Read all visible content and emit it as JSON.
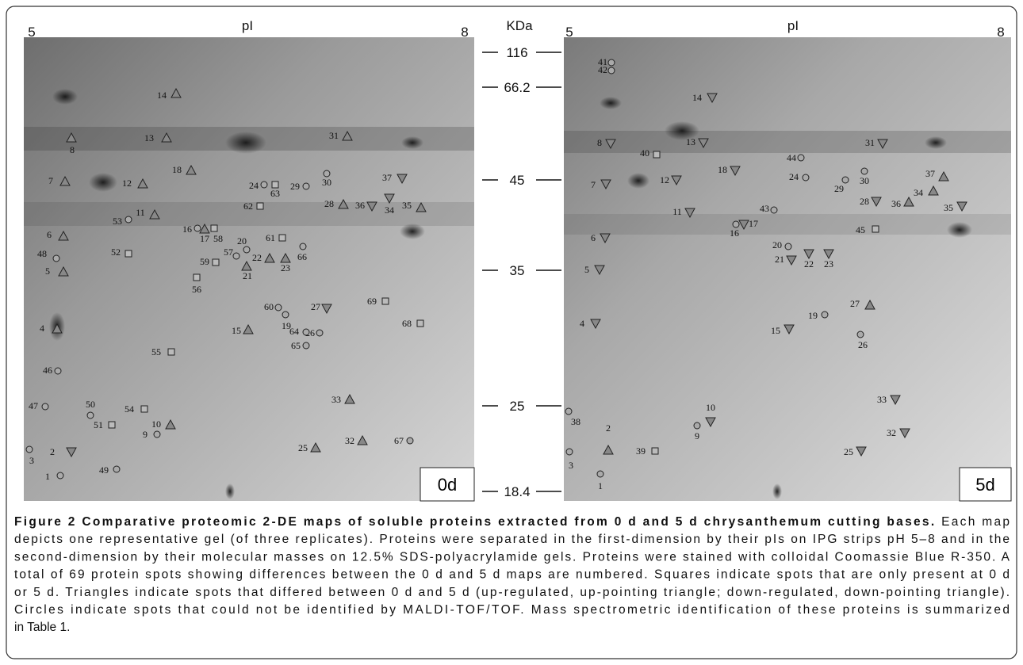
{
  "figure": {
    "panels": [
      {
        "pi_axis": {
          "label": "pI",
          "start": "5",
          "end": "8"
        },
        "badge": "0d",
        "spots": [
          {
            "label": "1",
            "shape": "circle"
          },
          {
            "label": "2",
            "shape": "down"
          },
          {
            "label": "3",
            "shape": "circle"
          },
          {
            "label": "4",
            "shape": "up"
          },
          {
            "label": "5",
            "shape": "up"
          },
          {
            "label": "6",
            "shape": "up"
          },
          {
            "label": "7",
            "shape": "up"
          },
          {
            "label": "8",
            "shape": "up"
          },
          {
            "label": "9",
            "shape": "circle"
          },
          {
            "label": "10",
            "shape": "up"
          },
          {
            "label": "11",
            "shape": "up"
          },
          {
            "label": "12",
            "shape": "up"
          },
          {
            "label": "13",
            "shape": "up"
          },
          {
            "label": "14",
            "shape": "up"
          },
          {
            "label": "15",
            "shape": "up"
          },
          {
            "label": "16",
            "shape": "circle"
          },
          {
            "label": "17",
            "shape": "up"
          },
          {
            "label": "18",
            "shape": "up"
          },
          {
            "label": "19",
            "shape": "circle"
          },
          {
            "label": "20",
            "shape": "circle"
          },
          {
            "label": "21",
            "shape": "up"
          },
          {
            "label": "22",
            "shape": "up"
          },
          {
            "label": "23",
            "shape": "up"
          },
          {
            "label": "24",
            "shape": "circle"
          },
          {
            "label": "25",
            "shape": "up"
          },
          {
            "label": "26",
            "shape": "circle"
          },
          {
            "label": "27",
            "shape": "down"
          },
          {
            "label": "28",
            "shape": "up"
          },
          {
            "label": "29",
            "shape": "circle"
          },
          {
            "label": "30",
            "shape": "circle"
          },
          {
            "label": "31",
            "shape": "up"
          },
          {
            "label": "32",
            "shape": "up"
          },
          {
            "label": "33",
            "shape": "up"
          },
          {
            "label": "34",
            "shape": "down"
          },
          {
            "label": "35",
            "shape": "up"
          },
          {
            "label": "36",
            "shape": "down"
          },
          {
            "label": "37",
            "shape": "down"
          },
          {
            "label": "46",
            "shape": "circle"
          },
          {
            "label": "47",
            "shape": "circle"
          },
          {
            "label": "48",
            "shape": "circle"
          },
          {
            "label": "49",
            "shape": "circle"
          },
          {
            "label": "50",
            "shape": "circle"
          },
          {
            "label": "51",
            "shape": "square"
          },
          {
            "label": "52",
            "shape": "square"
          },
          {
            "label": "53",
            "shape": "circle"
          },
          {
            "label": "54",
            "shape": "square"
          },
          {
            "label": "55",
            "shape": "square"
          },
          {
            "label": "56",
            "shape": "square"
          },
          {
            "label": "57",
            "shape": "circle"
          },
          {
            "label": "58",
            "shape": "square"
          },
          {
            "label": "59",
            "shape": "square"
          },
          {
            "label": "60",
            "shape": "circle"
          },
          {
            "label": "61",
            "shape": "square"
          },
          {
            "label": "62",
            "shape": "square"
          },
          {
            "label": "63",
            "shape": "square"
          },
          {
            "label": "64",
            "shape": "circle"
          },
          {
            "label": "65",
            "shape": "circle"
          },
          {
            "label": "66",
            "shape": "circle"
          },
          {
            "label": "67",
            "shape": "circle"
          },
          {
            "label": "68",
            "shape": "square"
          },
          {
            "label": "69",
            "shape": "square"
          }
        ]
      },
      {
        "pi_axis": {
          "label": "pI",
          "start": "5",
          "end": "8"
        },
        "badge": "5d",
        "spots": [
          {
            "label": "1",
            "shape": "circle"
          },
          {
            "label": "2",
            "shape": "up"
          },
          {
            "label": "3",
            "shape": "circle"
          },
          {
            "label": "4",
            "shape": "down"
          },
          {
            "label": "5",
            "shape": "down"
          },
          {
            "label": "6",
            "shape": "down"
          },
          {
            "label": "7",
            "shape": "down"
          },
          {
            "label": "8",
            "shape": "down"
          },
          {
            "label": "9",
            "shape": "circle"
          },
          {
            "label": "10",
            "shape": "down"
          },
          {
            "label": "11",
            "shape": "down"
          },
          {
            "label": "12",
            "shape": "down"
          },
          {
            "label": "13",
            "shape": "down"
          },
          {
            "label": "14",
            "shape": "down"
          },
          {
            "label": "15",
            "shape": "down"
          },
          {
            "label": "16",
            "shape": "circle"
          },
          {
            "label": "17",
            "shape": "down"
          },
          {
            "label": "18",
            "shape": "down"
          },
          {
            "label": "19",
            "shape": "circle"
          },
          {
            "label": "20",
            "shape": "circle"
          },
          {
            "label": "21",
            "shape": "down"
          },
          {
            "label": "22",
            "shape": "down"
          },
          {
            "label": "23",
            "shape": "down"
          },
          {
            "label": "24",
            "shape": "circle"
          },
          {
            "label": "25",
            "shape": "down"
          },
          {
            "label": "26",
            "shape": "circle"
          },
          {
            "label": "27",
            "shape": "up"
          },
          {
            "label": "28",
            "shape": "down"
          },
          {
            "label": "29",
            "shape": "circle"
          },
          {
            "label": "30",
            "shape": "circle"
          },
          {
            "label": "31",
            "shape": "down"
          },
          {
            "label": "32",
            "shape": "down"
          },
          {
            "label": "33",
            "shape": "down"
          },
          {
            "label": "34",
            "shape": "up"
          },
          {
            "label": "35",
            "shape": "down"
          },
          {
            "label": "36",
            "shape": "up"
          },
          {
            "label": "37",
            "shape": "up"
          },
          {
            "label": "38",
            "shape": "circle"
          },
          {
            "label": "39",
            "shape": "square"
          },
          {
            "label": "40",
            "shape": "square"
          },
          {
            "label": "41",
            "shape": "circle"
          },
          {
            "label": "42",
            "shape": "circle"
          },
          {
            "label": "43",
            "shape": "circle"
          },
          {
            "label": "44",
            "shape": "circle"
          },
          {
            "label": "45",
            "shape": "square"
          }
        ]
      }
    ],
    "mw_axis": {
      "label": "KDa",
      "ticks": [
        "116",
        "66.2",
        "45",
        "35",
        "25",
        "18.4"
      ]
    },
    "caption": {
      "title": "Figure 2 Comparative proteomic 2-DE maps of soluble proteins extracted from 0 d and 5 d chrysanthemum cutting bases.",
      "lines": [
        "Each map",
        "depicts one representative gel (of three replicates). Proteins were separated in the first-dimension by their pIs on IPG strips pH 5–8 and in the",
        "second-dimension by their molecular masses on 12.5% SDS-polyacrylamide gels. Proteins were stained with colloidal Coomassie Blue R-350. A",
        "total of 69 protein spots showing differences between the 0 d and 5 d maps are numbered. Squares indicate spots that are only present at 0 d",
        "or 5 d. Triangles indicate spots that differed between 0 d and 5 d (up-regulated, up-pointing triangle; down-regulated, down-pointing triangle).",
        "Circles indicate spots that could not be identified by MALDI-TOF/TOF. Mass spectrometric identification of these proteins is summarized",
        "in Table 1."
      ]
    }
  }
}
